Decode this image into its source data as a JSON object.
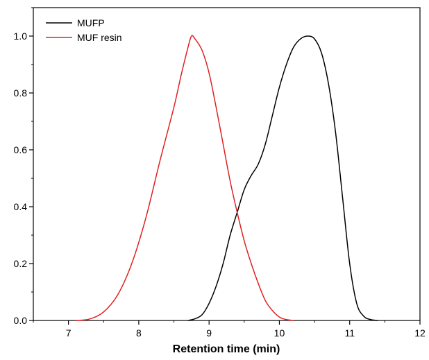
{
  "chart_data": {
    "type": "line",
    "title": "",
    "xlabel": "Retention time (min)",
    "ylabel": "",
    "xlim": [
      6.5,
      12
    ],
    "ylim": [
      0,
      1.1
    ],
    "x_ticks": [
      "7",
      "8",
      "9",
      "10",
      "11",
      "12"
    ],
    "y_ticks": [
      "0.0",
      "0.2",
      "0.4",
      "0.6",
      "0.8",
      "1.0"
    ],
    "grid": false,
    "legend_position": "top-left",
    "series": [
      {
        "name": "MUFP",
        "color": "#000000",
        "points": [
          [
            8.7,
            0.0
          ],
          [
            8.8,
            0.006
          ],
          [
            8.9,
            0.02
          ],
          [
            9.0,
            0.06
          ],
          [
            9.1,
            0.12
          ],
          [
            9.2,
            0.2
          ],
          [
            9.3,
            0.3
          ],
          [
            9.4,
            0.38
          ],
          [
            9.5,
            0.46
          ],
          [
            9.6,
            0.51
          ],
          [
            9.7,
            0.55
          ],
          [
            9.8,
            0.62
          ],
          [
            9.9,
            0.72
          ],
          [
            10.0,
            0.82
          ],
          [
            10.1,
            0.9
          ],
          [
            10.2,
            0.96
          ],
          [
            10.3,
            0.99
          ],
          [
            10.4,
            1.0
          ],
          [
            10.5,
            0.99
          ],
          [
            10.6,
            0.94
          ],
          [
            10.7,
            0.83
          ],
          [
            10.8,
            0.66
          ],
          [
            10.9,
            0.43
          ],
          [
            11.0,
            0.2
          ],
          [
            11.1,
            0.06
          ],
          [
            11.2,
            0.015
          ],
          [
            11.3,
            0.003
          ],
          [
            11.4,
            0.0
          ]
        ]
      },
      {
        "name": "MUF resin",
        "color": "#e02020",
        "points": [
          [
            7.1,
            0.0
          ],
          [
            7.3,
            0.005
          ],
          [
            7.5,
            0.03
          ],
          [
            7.7,
            0.09
          ],
          [
            7.9,
            0.2
          ],
          [
            8.1,
            0.36
          ],
          [
            8.3,
            0.56
          ],
          [
            8.5,
            0.75
          ],
          [
            8.6,
            0.86
          ],
          [
            8.7,
            0.96
          ],
          [
            8.75,
            1.0
          ],
          [
            8.8,
            0.99
          ],
          [
            8.9,
            0.95
          ],
          [
            9.0,
            0.87
          ],
          [
            9.1,
            0.75
          ],
          [
            9.2,
            0.62
          ],
          [
            9.3,
            0.49
          ],
          [
            9.4,
            0.38
          ],
          [
            9.5,
            0.28
          ],
          [
            9.6,
            0.2
          ],
          [
            9.7,
            0.13
          ],
          [
            9.8,
            0.07
          ],
          [
            9.9,
            0.035
          ],
          [
            10.0,
            0.012
          ],
          [
            10.1,
            0.003
          ],
          [
            10.2,
            0.0
          ]
        ]
      }
    ]
  }
}
